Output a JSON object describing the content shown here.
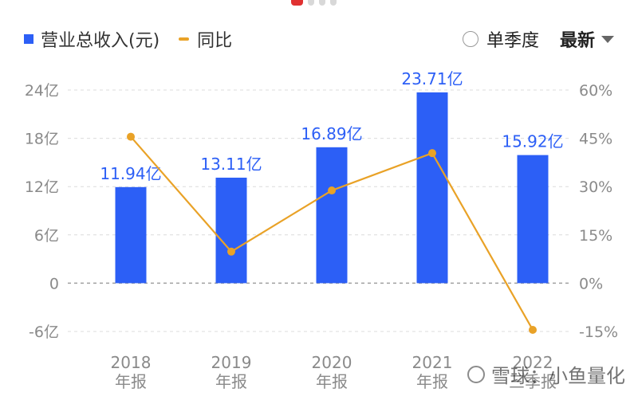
{
  "legend": {
    "bar_label": "营业总收入(元)",
    "line_label": "同比"
  },
  "controls": {
    "single_quarter": "单季度",
    "sort": "最新"
  },
  "watermark": "雪球：小鱼量化",
  "colors": {
    "bar": "#2c5ff6",
    "line": "#e9a227",
    "grid": "#dcdcdc",
    "label": "#2c5ff6"
  },
  "chart_data": {
    "type": "bar",
    "categories": [
      "2018\n年报",
      "2019\n年报",
      "2020\n年报",
      "2021\n年报",
      "2022\n三季报"
    ],
    "series": [
      {
        "name": "营业总收入(元)",
        "type": "bar",
        "axis": "left",
        "values": [
          11.94,
          13.11,
          16.89,
          23.71,
          15.92
        ],
        "labels": [
          "11.94亿",
          "13.11亿",
          "16.89亿",
          "23.71亿",
          "15.92亿"
        ]
      },
      {
        "name": "同比",
        "type": "line",
        "axis": "right",
        "values": [
          45.5,
          9.8,
          28.8,
          40.4,
          -14.5
        ]
      }
    ],
    "y_left": {
      "ticks": [
        "24亿",
        "18亿",
        "12亿",
        "6亿",
        "0",
        "-6亿"
      ],
      "values": [
        24,
        18,
        12,
        6,
        0,
        -6
      ],
      "ylim": [
        -6,
        24
      ]
    },
    "y_right": {
      "ticks": [
        "60%",
        "45%",
        "30%",
        "15%",
        "0%",
        "-15%"
      ],
      "values": [
        60,
        45,
        30,
        15,
        0,
        -15
      ],
      "ylim": [
        -15,
        60
      ]
    },
    "grid": true,
    "legend_position": "top-left"
  }
}
